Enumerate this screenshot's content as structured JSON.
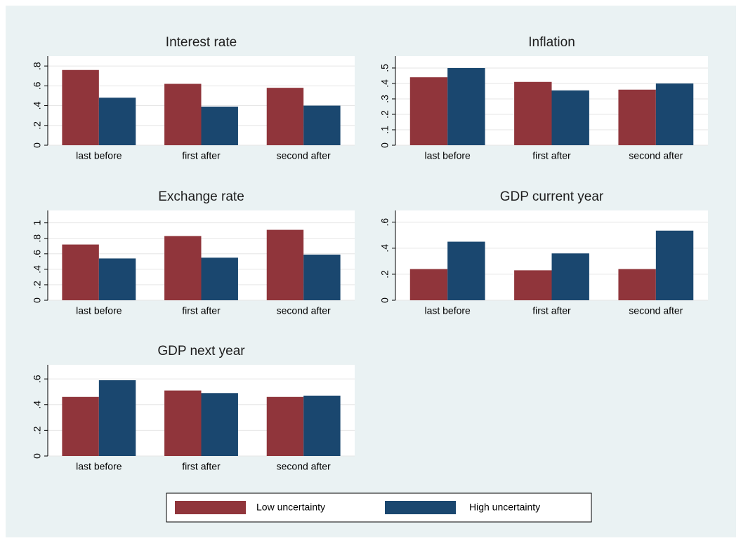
{
  "chart_data": [
    {
      "type": "bar",
      "title": "Interest rate",
      "categories": [
        "last before",
        "first after",
        "second after"
      ],
      "series": [
        {
          "name": "Low uncertainty",
          "color": "#90353b",
          "values": [
            0.76,
            0.62,
            0.58
          ]
        },
        {
          "name": "High uncertainty",
          "color": "#1a476f",
          "values": [
            0.48,
            0.39,
            0.4
          ]
        }
      ],
      "ylim": [
        0,
        0.9
      ],
      "yticks": [
        0,
        {
          "value": 0.2,
          "label": ".2"
        },
        {
          "value": 0.4,
          "label": ".4"
        },
        {
          "value": 0.6,
          "label": ".6"
        },
        {
          "value": 0.8,
          "label": ".8"
        }
      ],
      "grid": true
    },
    {
      "type": "bar",
      "title": "Inflation",
      "categories": [
        "last before",
        "first after",
        "second after"
      ],
      "series": [
        {
          "name": "Low uncertainty",
          "color": "#90353b",
          "values": [
            0.44,
            0.41,
            0.36
          ]
        },
        {
          "name": "High uncertainty",
          "color": "#1a476f",
          "values": [
            0.5,
            0.355,
            0.4
          ]
        }
      ],
      "ylim": [
        0,
        0.577
      ],
      "yticks": [
        0,
        {
          "value": 0.1,
          "label": ".1"
        },
        {
          "value": 0.2,
          "label": ".2"
        },
        {
          "value": 0.3,
          "label": ".3"
        },
        {
          "value": 0.4,
          "label": ".4"
        },
        {
          "value": 0.5,
          "label": ".5"
        }
      ],
      "grid": true
    },
    {
      "type": "bar",
      "title": "Exchange rate",
      "categories": [
        "last before",
        "first after",
        "second after"
      ],
      "series": [
        {
          "name": "Low uncertainty",
          "color": "#90353b",
          "values": [
            0.72,
            0.83,
            0.91
          ]
        },
        {
          "name": "High uncertainty",
          "color": "#1a476f",
          "values": [
            0.54,
            0.55,
            0.59
          ]
        }
      ],
      "ylim": [
        0,
        1.16
      ],
      "yticks": [
        0,
        {
          "value": 0.2,
          "label": ".2"
        },
        {
          "value": 0.4,
          "label": ".4"
        },
        {
          "value": 0.6,
          "label": ".6"
        },
        {
          "value": 0.8,
          "label": ".8"
        },
        1
      ],
      "grid": true
    },
    {
      "type": "bar",
      "title": "GDP current year",
      "categories": [
        "last before",
        "first after",
        "second after"
      ],
      "series": [
        {
          "name": "Low uncertainty",
          "color": "#90353b",
          "values": [
            0.24,
            0.23,
            0.24
          ]
        },
        {
          "name": "High uncertainty",
          "color": "#1a476f",
          "values": [
            0.45,
            0.36,
            0.535
          ]
        }
      ],
      "ylim": [
        0,
        0.69
      ],
      "yticks": [
        0,
        {
          "value": 0.2,
          "label": ".2"
        },
        {
          "value": 0.4,
          "label": ".4"
        },
        {
          "value": 0.6,
          "label": ".6"
        }
      ],
      "grid": true
    },
    {
      "type": "bar",
      "title": "GDP next year",
      "categories": [
        "last before",
        "first after",
        "second after"
      ],
      "series": [
        {
          "name": "Low uncertainty",
          "color": "#90353b",
          "values": [
            0.46,
            0.51,
            0.46
          ]
        },
        {
          "name": "High uncertainty",
          "color": "#1a476f",
          "values": [
            0.59,
            0.49,
            0.47
          ]
        }
      ],
      "ylim": [
        0,
        0.71
      ],
      "yticks": [
        0,
        {
          "value": 0.2,
          "label": ".2"
        },
        {
          "value": 0.4,
          "label": ".4"
        },
        {
          "value": 0.6,
          "label": ".6"
        }
      ],
      "grid": true
    }
  ]
}
